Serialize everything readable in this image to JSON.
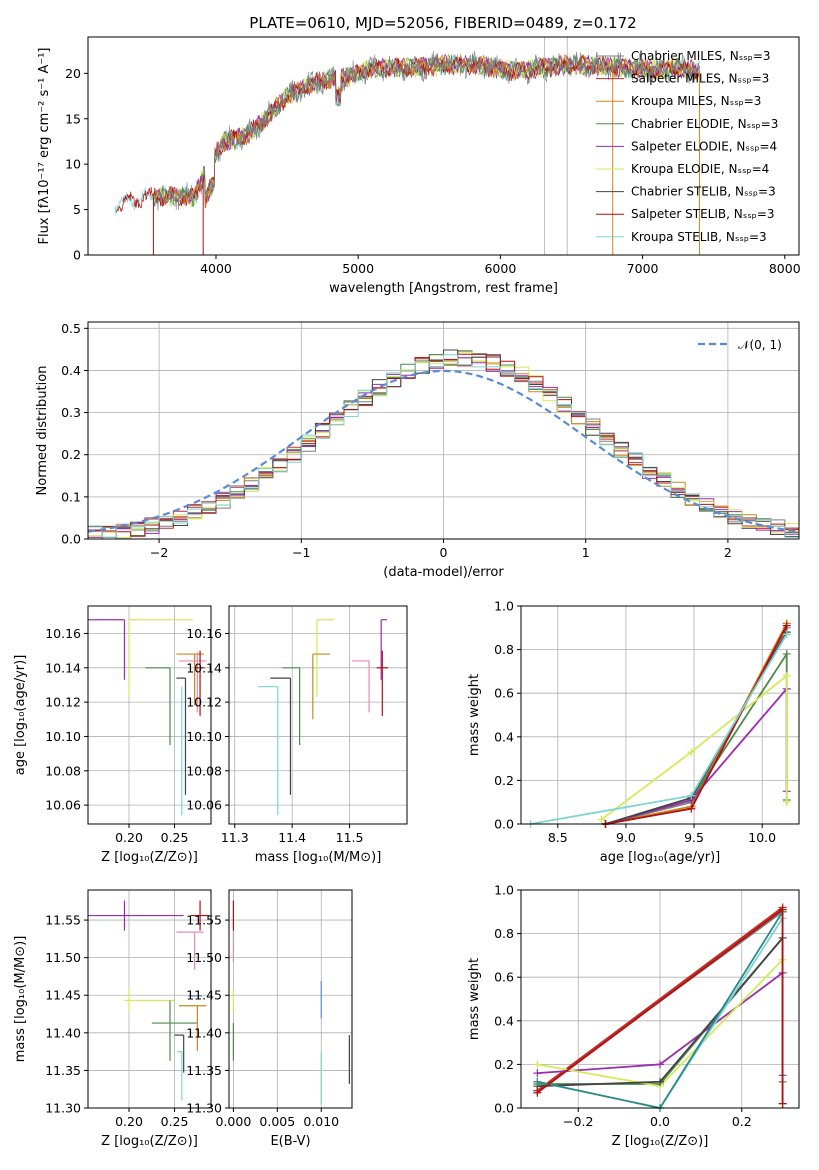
{
  "title": "PLATE=0610, MJD=52056, FIBERID=0489, z=0.172",
  "colors": {
    "chabrier_miles": "#7f7f7f",
    "salpeter_miles": "#c72a2a",
    "kroupa_miles": "#c8881a",
    "chabrier_elodie": "#4c8a4c",
    "salpeter_elodie": "#9b2bb0",
    "kroupa_elodie": "#d4ea5a",
    "chabrier_stelib": "#444444",
    "salpeter_stelib": "#b01010",
    "kroupa_stelib": "#7fd3d3",
    "gauss": "#5b8bd8"
  },
  "chart_data": [
    {
      "id": "spectrum",
      "type": "line",
      "title": "PLATE=0610, MJD=52056, FIBERID=0489, z=0.172",
      "xlabel": "wavelength [Angstrom, rest frame]",
      "ylabel": "Flux [fλ10⁻¹⁷ erg cm⁻² s⁻¹ A⁻¹]",
      "xlim": [
        3100,
        8100
      ],
      "ylim": [
        0,
        24
      ],
      "xticks": [
        "4000",
        "5000",
        "6000",
        "7000",
        "8000"
      ],
      "yticks": [
        "0",
        "5",
        "10",
        "15",
        "20"
      ],
      "grid_vertical_lines": [
        6310,
        6470
      ],
      "legend_position": "right",
      "legend": [
        "Chabrier MILES, Nₛₛₚ=3",
        "Salpeter MILES, Nₛₛₚ=3",
        "Kroupa MILES, Nₛₛₚ=3",
        "Chabrier ELODIE, Nₛₛₚ=3",
        "Salpeter ELODIE, Nₛₛₚ=4",
        "Kroupa ELODIE, Nₛₛₚ=4",
        "Chabrier STELIB, Nₛₛₚ=3",
        "Salpeter STELIB, Nₛₛₚ=3",
        "Kroupa STELIB, Nₛₛₚ=3"
      ],
      "continuum": {
        "x": [
          3300,
          3500,
          3700,
          3850,
          3950,
          4050,
          4200,
          4350,
          4500,
          4700,
          4900,
          5100,
          5300,
          5500,
          5700,
          5900,
          6100,
          6300,
          6500,
          6700,
          6900,
          7100,
          7200,
          7400
        ],
        "y": [
          5.5,
          6.3,
          6.5,
          6.4,
          10.0,
          12.5,
          13.0,
          15.0,
          17.5,
          19.0,
          19.5,
          20.5,
          20.6,
          20.8,
          21.0,
          20.8,
          20.2,
          20.6,
          21.0,
          20.8,
          20.6,
          20.4,
          20.6,
          20.3
        ]
      },
      "drops": [
        3560,
        3910,
        6790,
        7400
      ]
    },
    {
      "id": "residuals",
      "type": "line",
      "xlabel": "(data-model)/error",
      "ylabel": "Normed distribution",
      "xlim": [
        -2.5,
        2.5
      ],
      "ylim": [
        0,
        0.515
      ],
      "xticks": [
        "−2",
        "−1",
        "0",
        "1",
        "2"
      ],
      "yticks": [
        "0.0",
        "0.1",
        "0.2",
        "0.3",
        "0.4",
        "0.5"
      ],
      "legend": "𝒩(0, 1)",
      "legend_position": "top-right",
      "bin_width": 0.1
    },
    {
      "id": "age-vs-Z",
      "type": "scatter",
      "xlabel": "Z [log₁₀(Z/Z⊙)]",
      "ylabel": "age  [log₁₀(age/yr)]",
      "xlim": [
        0.155,
        0.29
      ],
      "ylim": [
        10.049,
        10.176
      ],
      "xticks": [
        "0.20",
        "0.25"
      ],
      "yticks": [
        "10.06",
        "10.08",
        "10.10",
        "10.12",
        "10.14",
        "10.16"
      ],
      "points": [
        {
          "x": 0.195,
          "y": 10.168,
          "xerr": [
            0.04,
            0.0
          ],
          "yerr": [
            0.035,
            0.0
          ],
          "color": "#9b2bb0"
        },
        {
          "x": 0.2,
          "y": 10.168,
          "xerr": [
            0.0,
            0.07
          ],
          "yerr": [
            0.045,
            0.0
          ],
          "color": "#d4ea5a"
        },
        {
          "x": 0.245,
          "y": 10.14,
          "xerr": [
            0.027,
            0.0
          ],
          "yerr": [
            0.045,
            0.0
          ],
          "color": "#4c8a4c"
        },
        {
          "x": 0.262,
          "y": 10.134,
          "xerr": [
            0.01,
            0.0
          ],
          "yerr": [
            0.068,
            0.0
          ],
          "color": "#444444"
        },
        {
          "x": 0.258,
          "y": 10.129,
          "xerr": [
            0.0,
            0.0
          ],
          "yerr": [
            0.075,
            0.0
          ],
          "color": "#7fd3d3"
        },
        {
          "x": 0.272,
          "y": 10.148,
          "xerr": [
            0.02,
            0.01
          ],
          "yerr": [
            0.03,
            0.0
          ],
          "color": "#c8881a"
        },
        {
          "x": 0.275,
          "y": 10.144,
          "xerr": [
            0.02,
            0.01
          ],
          "yerr": [
            0.03,
            0.005
          ],
          "color": "#e888b8"
        },
        {
          "x": 0.278,
          "y": 10.14,
          "xerr": [
            0.005,
            0.005
          ],
          "yerr": [
            0.028,
            0.01
          ],
          "color": "#b01010"
        }
      ]
    },
    {
      "id": "age-vs-mass",
      "type": "scatter",
      "xlabel": "mass [log₁₀(M/M⊙)]",
      "ylabel": "",
      "xlim": [
        11.29,
        11.6
      ],
      "ylim": [
        10.049,
        10.176
      ],
      "xticks": [
        "11.3",
        "11.4",
        "11.5"
      ],
      "yticks": [
        "10.06",
        "10.08",
        "10.10",
        "10.12",
        "10.14",
        "10.16"
      ],
      "points": [
        {
          "x": 11.555,
          "y": 10.168,
          "xerr": [
            0.0,
            0.01
          ],
          "yerr": [
            0.035,
            0.0
          ],
          "color": "#9b2bb0"
        },
        {
          "x": 11.443,
          "y": 10.168,
          "xerr": [
            0.0,
            0.03
          ],
          "yerr": [
            0.045,
            0.0
          ],
          "color": "#d4ea5a"
        },
        {
          "x": 11.413,
          "y": 10.14,
          "xerr": [
            0.03,
            0.0
          ],
          "yerr": [
            0.045,
            0.0
          ],
          "color": "#4c8a4c"
        },
        {
          "x": 11.397,
          "y": 10.134,
          "xerr": [
            0.035,
            0.0
          ],
          "yerr": [
            0.068,
            0.0
          ],
          "color": "#444444"
        },
        {
          "x": 11.375,
          "y": 10.129,
          "xerr": [
            0.035,
            0.0
          ],
          "yerr": [
            0.075,
            0.0
          ],
          "color": "#7fd3d3"
        },
        {
          "x": 11.436,
          "y": 10.148,
          "xerr": [
            0.0,
            0.03
          ],
          "yerr": [
            0.038,
            0.0
          ],
          "color": "#c8881a"
        },
        {
          "x": 11.534,
          "y": 10.144,
          "xerr": [
            0.03,
            0.0
          ],
          "yerr": [
            0.03,
            0.0
          ],
          "color": "#e888b8"
        },
        {
          "x": 11.557,
          "y": 10.14,
          "xerr": [
            0.01,
            0.01
          ],
          "yerr": [
            0.028,
            0.01
          ],
          "color": "#b01010"
        }
      ]
    },
    {
      "id": "massweight-vs-age",
      "type": "line",
      "xlabel": "age  [log₁₀(age/yr)]",
      "ylabel": "mass weight",
      "xlim": [
        8.23,
        10.27
      ],
      "ylim": [
        0,
        1.0
      ],
      "xticks": [
        "8.5",
        "9.0",
        "9.5",
        "10.0"
      ],
      "yticks": [
        "0.0",
        "0.2",
        "0.4",
        "0.6",
        "0.8",
        "1.0"
      ],
      "series": [
        {
          "color": "#7f7f7f",
          "x": [
            8.85,
            9.48,
            10.18
          ],
          "y": [
            0.0,
            0.1,
            0.9
          ]
        },
        {
          "color": "#c72a2a",
          "x": [
            8.85,
            9.48,
            10.18
          ],
          "y": [
            0.0,
            0.08,
            0.92
          ]
        },
        {
          "color": "#c8881a",
          "x": [
            8.85,
            9.48,
            10.18
          ],
          "y": [
            0.0,
            0.08,
            0.92
          ]
        },
        {
          "color": "#4c8a4c",
          "x": [
            8.85,
            9.48,
            10.18,
            10.18
          ],
          "y": [
            0.0,
            0.11,
            0.78,
            0.11
          ]
        },
        {
          "color": "#9b2bb0",
          "x": [
            8.85,
            9.48,
            10.18,
            10.18
          ],
          "y": [
            0.0,
            0.11,
            0.62,
            0.15
          ]
        },
        {
          "color": "#d4ea5a",
          "x": [
            8.82,
            9.48,
            10.18,
            10.18
          ],
          "y": [
            0.02,
            0.33,
            0.68,
            0.1
          ]
        },
        {
          "color": "#444444",
          "x": [
            8.85,
            9.48,
            10.18
          ],
          "y": [
            0.0,
            0.12,
            0.88
          ]
        },
        {
          "color": "#b01010",
          "x": [
            8.85,
            9.48,
            10.18
          ],
          "y": [
            0.0,
            0.07,
            0.91
          ]
        },
        {
          "color": "#7fd3d3",
          "x": [
            8.3,
            9.48,
            10.18
          ],
          "y": [
            0.0,
            0.13,
            0.87
          ]
        }
      ]
    },
    {
      "id": "mass-vs-Z",
      "type": "scatter",
      "xlabel": "Z [log₁₀(Z/Z⊙)]",
      "ylabel": "mass [log₁₀(M/M⊙)]",
      "xlim": [
        0.155,
        0.29
      ],
      "ylim": [
        11.3,
        11.59
      ],
      "xticks": [
        "0.20",
        "0.25"
      ],
      "yticks": [
        "11.30",
        "11.35",
        "11.40",
        "11.45",
        "11.50",
        "11.55"
      ],
      "points": [
        {
          "x": 0.195,
          "y": 11.556,
          "xerr": [
            0.04,
            0.065
          ],
          "yerr": [
            0.02,
            0.02
          ],
          "color": "#9b2bb0"
        },
        {
          "x": 0.2,
          "y": 11.443,
          "xerr": [
            0.005,
            0.05
          ],
          "yerr": [
            0.015,
            0.015
          ],
          "color": "#d4ea5a"
        },
        {
          "x": 0.245,
          "y": 11.413,
          "xerr": [
            0.02,
            0.03
          ],
          "yerr": [
            0.05,
            0.03
          ],
          "color": "#4c8a4c"
        },
        {
          "x": 0.26,
          "y": 11.397,
          "xerr": [
            0.01,
            0.0
          ],
          "yerr": [
            0.05,
            0.0
          ],
          "color": "#444444"
        },
        {
          "x": 0.258,
          "y": 11.375,
          "xerr": [
            0.005,
            0.0
          ],
          "yerr": [
            0.065,
            0.0
          ],
          "color": "#7fd3d3"
        },
        {
          "x": 0.275,
          "y": 11.436,
          "xerr": [
            0.02,
            0.01
          ],
          "yerr": [
            0.06,
            0.0
          ],
          "color": "#c8881a"
        },
        {
          "x": 0.272,
          "y": 11.534,
          "xerr": [
            0.02,
            0.01
          ],
          "yerr": [
            0.05,
            0.0
          ],
          "color": "#e888b8"
        },
        {
          "x": 0.278,
          "y": 11.556,
          "xerr": [
            0.01,
            0.01
          ],
          "yerr": [
            0.02,
            0.02
          ],
          "color": "#b01010"
        },
        {
          "x": 0.28,
          "y": 11.449,
          "xerr": [
            0.015,
            0.0
          ],
          "yerr": [
            0.0,
            0.0
          ],
          "color": "#5b8bd8"
        }
      ]
    },
    {
      "id": "mass-vs-EBV",
      "type": "scatter",
      "xlabel": "E(B-V)",
      "ylabel": "",
      "xlim": [
        -0.0005,
        0.0135
      ],
      "ylim": [
        11.3,
        11.59
      ],
      "xticks": [
        "0.000",
        "0.005",
        "0.010"
      ],
      "yticks": [
        "11.30",
        "11.35",
        "11.40",
        "11.45",
        "11.50",
        "11.55"
      ],
      "points": [
        {
          "x": 0.0,
          "y": 11.556,
          "yerr": [
            0.02,
            0.02
          ],
          "color": "#b01010"
        },
        {
          "x": 0.0,
          "y": 11.534,
          "yerr": [
            0.04,
            0.0
          ],
          "color": "#e888b8"
        },
        {
          "x": 0.0,
          "y": 11.443,
          "yerr": [
            0.015,
            0.015
          ],
          "color": "#d4ea5a"
        },
        {
          "x": 0.0,
          "y": 11.413,
          "yerr": [
            0.05,
            0.0
          ],
          "color": "#4c8a4c"
        },
        {
          "x": 0.01,
          "y": 11.449,
          "yerr": [
            0.03,
            0.02
          ],
          "color": "#5b8bd8"
        },
        {
          "x": 0.01,
          "y": 11.375,
          "yerr": [
            0.07,
            0.0
          ],
          "color": "#7fd3d3"
        },
        {
          "x": 0.0132,
          "y": 11.397,
          "yerr": [
            0.065,
            0.0
          ],
          "color": "#444444"
        }
      ]
    },
    {
      "id": "massweight-vs-Z",
      "type": "line",
      "xlabel": "Z [log₁₀(Z/Z⊙)]",
      "ylabel": "mass weight",
      "xlim": [
        -0.34,
        0.34
      ],
      "ylim": [
        0,
        1.0
      ],
      "xticks": [
        "−0.2",
        "0.0",
        "0.2"
      ],
      "yticks": [
        "0.0",
        "0.2",
        "0.4",
        "0.6",
        "0.8",
        "1.0"
      ],
      "series": [
        {
          "color": "#7f7f7f",
          "x": [
            -0.3,
            0.3
          ],
          "y": [
            0.08,
            0.9
          ]
        },
        {
          "color": "#c8881a",
          "x": [
            -0.3,
            0.3,
            0.3
          ],
          "y": [
            0.08,
            0.92,
            0.02
          ]
        },
        {
          "color": "#c72a2a",
          "x": [
            -0.3,
            0.3
          ],
          "y": [
            0.08,
            0.92
          ]
        },
        {
          "color": "#4c8a4c",
          "x": [
            -0.3,
            0.0,
            0.3,
            0.3
          ],
          "y": [
            0.11,
            0.11,
            0.78,
            0.12
          ]
        },
        {
          "color": "#9b2bb0",
          "x": [
            -0.3,
            0.0,
            0.3,
            0.3
          ],
          "y": [
            0.16,
            0.2,
            0.62,
            0.15
          ]
        },
        {
          "color": "#d4ea5a",
          "x": [
            -0.3,
            0.0,
            0.3
          ],
          "y": [
            0.2,
            0.1,
            0.68
          ]
        },
        {
          "color": "#444444",
          "x": [
            -0.3,
            0.0,
            0.3
          ],
          "y": [
            0.1,
            0.12,
            0.78
          ]
        },
        {
          "color": "#7fd3d3",
          "x": [
            -0.3,
            0.0,
            0.3
          ],
          "y": [
            0.12,
            0.0,
            0.87
          ]
        },
        {
          "color": "#2a8a8a",
          "x": [
            -0.3,
            0.0,
            0.3
          ],
          "y": [
            0.12,
            0.0,
            0.9
          ]
        },
        {
          "color": "#b01010",
          "x": [
            -0.3,
            0.3,
            0.3
          ],
          "y": [
            0.07,
            0.91,
            0.02
          ]
        }
      ]
    }
  ]
}
